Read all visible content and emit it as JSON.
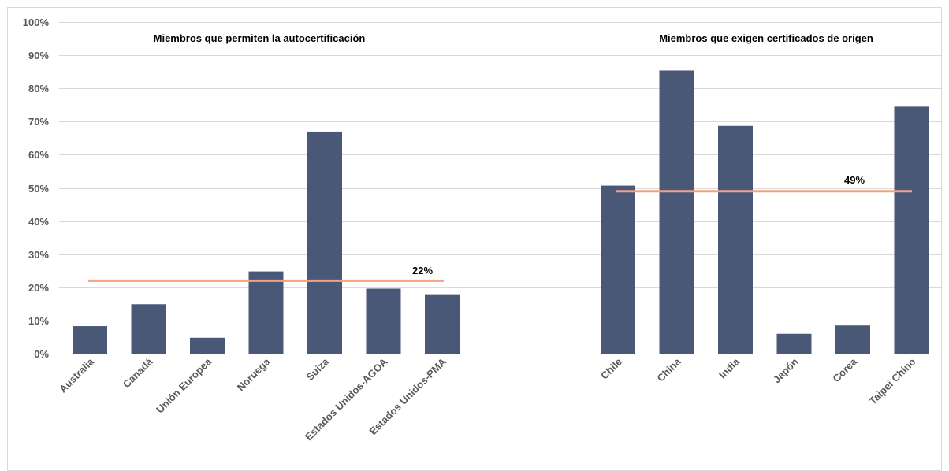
{
  "chart_data": {
    "type": "bar",
    "ylim": [
      0,
      100
    ],
    "y_ticks": [
      "0%",
      "10%",
      "20%",
      "30%",
      "40%",
      "50%",
      "60%",
      "70%",
      "80%",
      "90%",
      "100%"
    ],
    "grid": true,
    "colors": {
      "bar": "#4a5878",
      "average_line": "#f4a083",
      "grid": "#d9d9d9",
      "tick_text": "#595959"
    },
    "groups": [
      {
        "title": "Miembros que permiten la autocertificación",
        "categories": [
          "Australia",
          "Canadá",
          "Unión Europea",
          "Noruega",
          "Suiza",
          "Estados Unidos-AGOA",
          "Estados Unidos-PMA"
        ],
        "values": [
          8.3,
          14.9,
          4.8,
          24.8,
          67.0,
          19.6,
          17.9
        ],
        "average": 22,
        "average_label": "22%"
      },
      {
        "title": "Miembros que exigen certificados de origen",
        "categories": [
          "Chile",
          "China",
          "India",
          "Japón",
          "Corea",
          "Taipei Chino"
        ],
        "values": [
          50.7,
          85.4,
          68.7,
          6.0,
          8.5,
          74.5
        ],
        "average": 49,
        "average_label": "49%"
      }
    ]
  }
}
